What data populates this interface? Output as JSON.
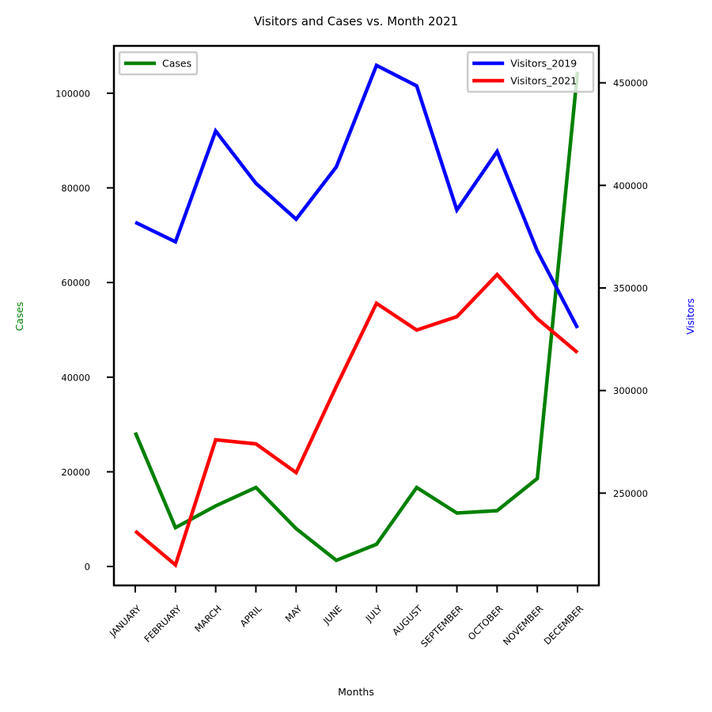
{
  "chart_data": {
    "type": "line",
    "title": "Visitors and Cases vs. Month 2021",
    "xlabel": "Months",
    "ylabel_left": "Cases",
    "ylabel_right": "Visitors",
    "categories": [
      "JANUARY",
      "FEBRUARY",
      "MARCH",
      "APRIL",
      "MAY",
      "JUNE",
      "JULY",
      "AUGUST",
      "SEPTEMBER",
      "OCTOBER",
      "NOVEMBER",
      "DECEMBER"
    ],
    "left_axis": {
      "ylim": [
        -4000,
        110000
      ],
      "ticks": [
        0,
        20000,
        40000,
        60000,
        80000,
        100000
      ],
      "tick_labels": [
        "0",
        "20000",
        "40000",
        "60000",
        "80000",
        "100000"
      ]
    },
    "right_axis": {
      "ylim": [
        205000,
        468000
      ],
      "ticks": [
        250000,
        300000,
        350000,
        400000,
        450000
      ],
      "tick_labels": [
        "250000",
        "300000",
        "350000",
        "400000",
        "450000"
      ]
    },
    "series": [
      {
        "name": "Cases",
        "axis": "left",
        "color": "#008000",
        "values": [
          28300,
          8200,
          12800,
          16700,
          8000,
          1300,
          4700,
          16700,
          11300,
          11800,
          18600,
          104500
        ]
      },
      {
        "name": "Visitors_2019",
        "axis": "right",
        "color": "#0000ff",
        "values": [
          382000,
          372500,
          426500,
          401000,
          383500,
          409000,
          458500,
          448500,
          388000,
          416500,
          368000,
          330500
        ]
      },
      {
        "name": "Visitors_2021",
        "axis": "right",
        "color": "#ff0000",
        "values": [
          231500,
          215000,
          276000,
          274000,
          260000,
          302000,
          342500,
          329500,
          336000,
          356500,
          335000,
          318500
        ]
      }
    ],
    "legends": {
      "left": {
        "placement": "top-left",
        "entries": [
          "Cases"
        ]
      },
      "right": {
        "placement": "top-right",
        "entries": [
          "Visitors_2019",
          "Visitors_2021"
        ]
      }
    },
    "colors": {
      "left_label": "#008000",
      "right_label": "#0000ff"
    },
    "grid": false
  }
}
